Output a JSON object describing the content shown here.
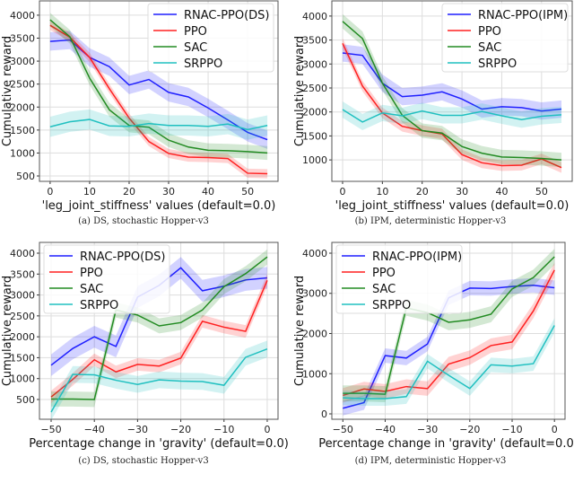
{
  "colors": {
    "RNAC": "#1f1fff",
    "PPO": "#ff2020",
    "SAC": "#228b22",
    "SRPPO": "#20c0c0"
  },
  "chart_data": [
    {
      "type": "line",
      "caption": "(a) DS, stochastic Hopper-v3",
      "xlabel": "'leg_joint_stiffness' values (default=0.0)",
      "ylabel": "Cumulative reward",
      "x": [
        0,
        5,
        10,
        15,
        20,
        25,
        30,
        35,
        40,
        45,
        50,
        55
      ],
      "xticks": [
        0,
        10,
        20,
        30,
        40,
        50
      ],
      "yticks": [
        500,
        1000,
        1500,
        2000,
        2500,
        3000,
        3500,
        4000
      ],
      "grid": true,
      "legend": "top-right",
      "series": [
        {
          "name": "RNAC-PPO(DS)",
          "key": "RNAC",
          "band": 200,
          "values": [
            3430,
            3460,
            3080,
            2880,
            2480,
            2600,
            2320,
            2220,
            1980,
            1720,
            1450,
            1290
          ]
        },
        {
          "name": "PPO",
          "key": "PPO",
          "band": 100,
          "values": [
            3780,
            3520,
            3080,
            2400,
            1760,
            1250,
            990,
            910,
            900,
            880,
            560,
            550
          ]
        },
        {
          "name": "SAC",
          "key": "SAC",
          "band": 150,
          "values": [
            3900,
            3530,
            2630,
            1940,
            1600,
            1560,
            1280,
            1130,
            1060,
            1050,
            1030,
            1000
          ]
        },
        {
          "name": "SRPPO",
          "key": "SRPPO",
          "band": 220,
          "values": [
            1570,
            1680,
            1730,
            1590,
            1580,
            1640,
            1600,
            1600,
            1580,
            1630,
            1510,
            1600
          ]
        }
      ]
    },
    {
      "type": "line",
      "caption": "(b) IPM, deterministic Hopper-v3",
      "xlabel": "'leg_joint_stiffness' values (default=0.0)",
      "ylabel": "Cumulative reward",
      "x": [
        0,
        5,
        10,
        15,
        20,
        25,
        30,
        35,
        40,
        45,
        50,
        55
      ],
      "xticks": [
        0,
        10,
        20,
        30,
        40,
        50
      ],
      "yticks": [
        1000,
        1500,
        2000,
        2500,
        3000,
        3500,
        4000
      ],
      "grid": true,
      "legend": "top-right",
      "series": [
        {
          "name": "RNAC-PPO(IPM)",
          "key": "RNAC",
          "band": 180,
          "values": [
            3230,
            3180,
            2600,
            2320,
            2350,
            2420,
            2270,
            2060,
            2110,
            2090,
            2020,
            2060
          ]
        },
        {
          "name": "PPO",
          "key": "PPO",
          "band": 110,
          "values": [
            3430,
            2540,
            1980,
            1700,
            1610,
            1540,
            1110,
            940,
            880,
            890,
            1020,
            840
          ]
        },
        {
          "name": "SAC",
          "key": "SAC",
          "band": 150,
          "values": [
            3890,
            3530,
            2600,
            1930,
            1610,
            1560,
            1280,
            1140,
            1060,
            1050,
            1030,
            1000
          ]
        },
        {
          "name": "SRPPO",
          "key": "SRPPO",
          "band": 170,
          "values": [
            2050,
            1790,
            1980,
            1920,
            2020,
            1930,
            1930,
            2010,
            1920,
            1840,
            1910,
            1940
          ]
        }
      ]
    },
    {
      "type": "line",
      "caption": "(c) DS, stochastic Hopper-v3",
      "xlabel": "Percentage change in 'gravity' (default=0.0)",
      "ylabel": "Cumulative reward",
      "x": [
        -50,
        -45,
        -40,
        -35,
        -30,
        -25,
        -20,
        -15,
        -10,
        -5,
        0
      ],
      "xticks": [
        -50,
        -40,
        -30,
        -20,
        -10,
        0
      ],
      "yticks": [
        500,
        1000,
        1500,
        2000,
        2500,
        3000,
        3500,
        4000
      ],
      "grid": true,
      "legend": "top-left",
      "series": [
        {
          "name": "RNAC-PPO(DS)",
          "key": "RNAC",
          "band": 260,
          "values": [
            1320,
            1720,
            2000,
            1770,
            2950,
            3230,
            3650,
            3100,
            3210,
            3360,
            3410
          ]
        },
        {
          "name": "PPO",
          "key": "PPO",
          "band": 150,
          "values": [
            560,
            980,
            1450,
            1160,
            1340,
            1300,
            1490,
            2370,
            2230,
            2130,
            3350
          ]
        },
        {
          "name": "SAC",
          "key": "SAC",
          "band": 180,
          "values": [
            510,
            510,
            500,
            2640,
            2520,
            2260,
            2340,
            2640,
            3200,
            3510,
            3910
          ]
        },
        {
          "name": "SRPPO",
          "key": "SRPPO",
          "band": 200,
          "values": [
            200,
            1100,
            1090,
            960,
            860,
            970,
            940,
            930,
            840,
            1510,
            1710
          ]
        }
      ]
    },
    {
      "type": "line",
      "caption": "(d) IPM, deterministic Hopper-v3",
      "xlabel": "Percentage change in 'gravity' (default=0.0)",
      "ylabel": "Cumulative reward",
      "x": [
        -50,
        -45,
        -40,
        -35,
        -30,
        -25,
        -20,
        -15,
        -10,
        -5,
        0
      ],
      "xticks": [
        -50,
        -40,
        -30,
        -20,
        -10,
        0
      ],
      "yticks": [
        0,
        1000,
        2000,
        3000,
        4000
      ],
      "grid": true,
      "legend": "top-left",
      "series": [
        {
          "name": "RNAC-PPO(IPM)",
          "key": "RNAC",
          "band": 180,
          "values": [
            140,
            280,
            1450,
            1390,
            1740,
            2890,
            3130,
            3120,
            3170,
            3200,
            3140
          ]
        },
        {
          "name": "PPO",
          "key": "PPO",
          "band": 180,
          "values": [
            460,
            620,
            560,
            680,
            630,
            1240,
            1400,
            1700,
            1790,
            2560,
            3580
          ]
        },
        {
          "name": "SAC",
          "key": "SAC",
          "band": 200,
          "values": [
            510,
            510,
            490,
            2640,
            2520,
            2280,
            2340,
            2480,
            3110,
            3390,
            3910
          ]
        },
        {
          "name": "SRPPO",
          "key": "SRPPO",
          "band": 180,
          "values": [
            400,
            380,
            380,
            430,
            1310,
            960,
            630,
            1220,
            1190,
            1250,
            2200
          ]
        }
      ]
    }
  ]
}
